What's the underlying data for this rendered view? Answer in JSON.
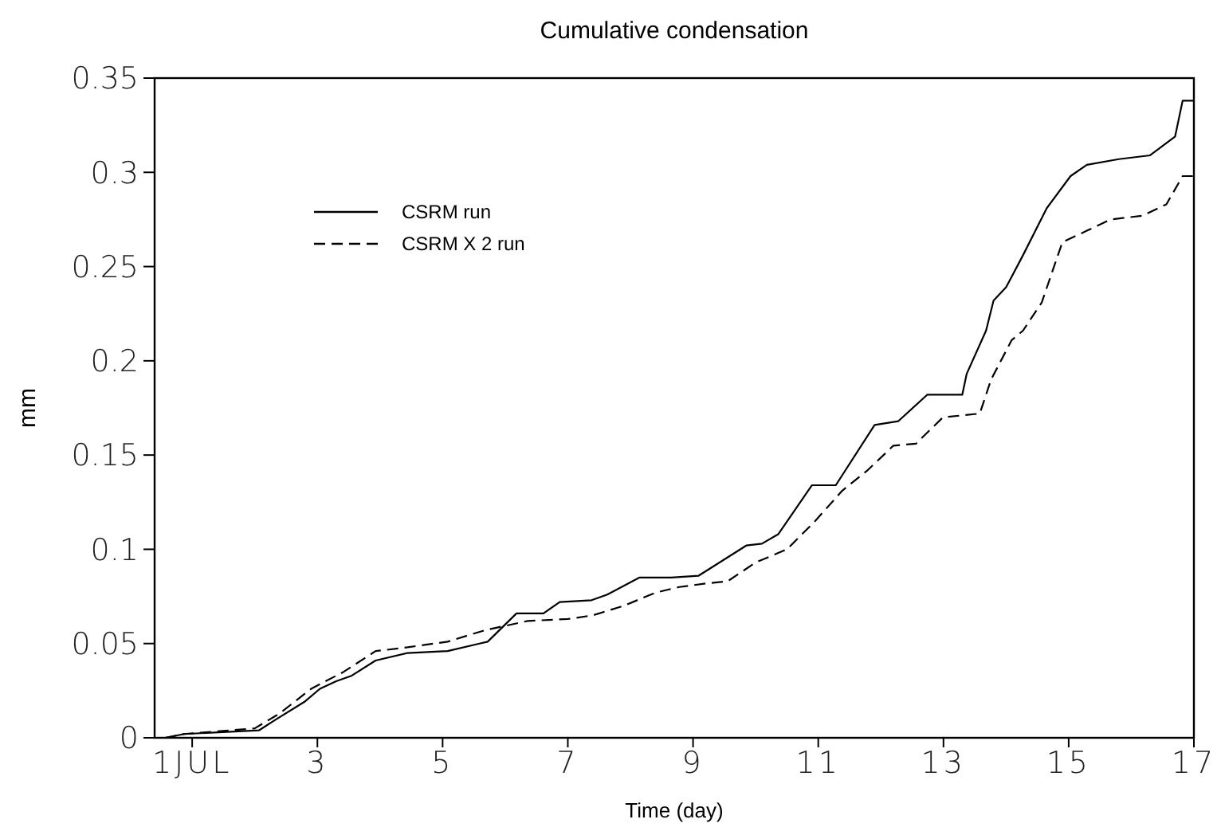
{
  "chart_data": {
    "type": "line",
    "title": "Cumulative condensation",
    "xlabel": "Time (day)",
    "ylabel": "mm",
    "xlim": [
      0.4,
      17
    ],
    "xticks": [
      {
        "value": 1,
        "label": "1JUL"
      },
      3,
      5,
      7,
      9,
      11,
      13,
      15,
      17
    ],
    "ylim": [
      0,
      0.35
    ],
    "yticks": [
      0,
      0.05,
      0.1,
      0.15,
      0.2,
      0.25,
      0.3,
      0.35
    ],
    "grid": false,
    "legend": "top left",
    "series": [
      {
        "name": "CSRM run",
        "color": "#000000",
        "line_style": "solid",
        "x": [
          0.57,
          0.87,
          2.07,
          2.35,
          2.79,
          3.04,
          3.3,
          3.55,
          3.93,
          4.44,
          5.08,
          5.59,
          5.72,
          6.18,
          6.61,
          6.87,
          7.38,
          7.63,
          8.14,
          8.65,
          9.09,
          9.85,
          10.1,
          10.36,
          10.9,
          11.28,
          11.9,
          12.28,
          12.74,
          13.3,
          13.37,
          13.68,
          13.8,
          14.0,
          14.27,
          14.65,
          15.03,
          15.29,
          15.8,
          16.3,
          16.7,
          16.82,
          17.0
        ],
        "values": [
          0,
          0.002,
          0.004,
          0.01,
          0.019,
          0.026,
          0.03,
          0.033,
          0.041,
          0.045,
          0.046,
          0.05,
          0.051,
          0.066,
          0.066,
          0.072,
          0.073,
          0.076,
          0.085,
          0.085,
          0.086,
          0.102,
          0.103,
          0.108,
          0.134,
          0.134,
          0.166,
          0.168,
          0.182,
          0.182,
          0.193,
          0.216,
          0.232,
          0.239,
          0.256,
          0.281,
          0.298,
          0.304,
          0.307,
          0.309,
          0.319,
          0.338,
          0.338
        ]
      },
      {
        "name": "CSRM X 2 run",
        "color": "#000000",
        "line_style": "dashed",
        "x": [
          0.57,
          0.87,
          2.0,
          2.4,
          2.9,
          3.42,
          3.93,
          4.44,
          5.08,
          5.67,
          6.36,
          7.0,
          7.4,
          7.89,
          8.4,
          8.78,
          9.24,
          9.55,
          10.0,
          10.5,
          10.95,
          11.38,
          11.79,
          12.2,
          12.56,
          12.99,
          13.58,
          13.76,
          14.09,
          14.27,
          14.57,
          14.9,
          15.29,
          15.67,
          16.18,
          16.56,
          16.82,
          17.0
        ],
        "values": [
          0,
          0.002,
          0.005,
          0.013,
          0.026,
          0.035,
          0.046,
          0.048,
          0.051,
          0.057,
          0.062,
          0.063,
          0.065,
          0.07,
          0.077,
          0.08,
          0.082,
          0.083,
          0.093,
          0.1,
          0.115,
          0.131,
          0.142,
          0.155,
          0.156,
          0.17,
          0.172,
          0.19,
          0.211,
          0.216,
          0.231,
          0.263,
          0.269,
          0.275,
          0.277,
          0.283,
          0.298,
          0.298
        ]
      }
    ]
  }
}
